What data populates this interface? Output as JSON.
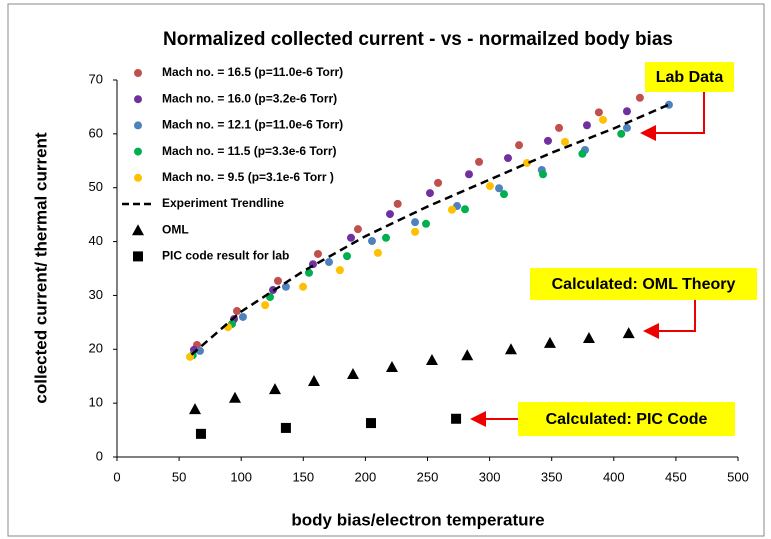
{
  "chart_data": {
    "type": "scatter",
    "title": "Normalized collected current - vs - normailzed body bias",
    "xlabel": "body bias/electron temperature",
    "ylabel": "collected  current/ thermal current",
    "xlim": [
      0,
      500
    ],
    "ylim": [
      0,
      70
    ],
    "xticks": [
      0,
      50,
      100,
      150,
      200,
      250,
      300,
      350,
      400,
      450,
      500
    ],
    "yticks": [
      0,
      10,
      20,
      30,
      40,
      50,
      60,
      70
    ],
    "grid": false,
    "legend": "upper left",
    "series": [
      {
        "name": "Mach no. = 16.5 (p=11.0e-6 Torr)",
        "color": "#c0504d",
        "marker": "circle",
        "x": [
          64.4,
          96.6,
          129.6,
          161.8,
          194,
          226,
          258.5,
          291.5,
          323.7,
          355.9,
          388,
          421
        ],
        "values": [
          20.8,
          27.1,
          32.7,
          37.7,
          42.3,
          47,
          50.9,
          54.8,
          57.9,
          61.1,
          64,
          66.7
        ]
      },
      {
        "name": "Mach no. = 16.0 (p=3.2e-6 Torr)",
        "color": "#7030a0",
        "marker": "circle",
        "x": [
          62,
          94.2,
          125.6,
          157.8,
          188.4,
          219.8,
          252,
          283.4,
          314.8,
          347,
          378.4,
          410.6
        ],
        "values": [
          19.9,
          25.6,
          31,
          35.8,
          40.7,
          45.1,
          49,
          52.5,
          55.5,
          58.7,
          61.6,
          64.2
        ]
      },
      {
        "name": "Mach no. = 12.1 (p=11.0e-6 Torr)",
        "color": "#4f81bd",
        "marker": "circle",
        "x": [
          66.8,
          101.4,
          136,
          170.7,
          205.3,
          240,
          273.8,
          307.6,
          342,
          376.8,
          410.6,
          444.4
        ],
        "values": [
          19.7,
          26,
          31.6,
          36.2,
          40.1,
          43.6,
          46.6,
          49.9,
          53.3,
          57,
          61.1,
          65.4
        ]
      },
      {
        "name": "Mach no. = 11.5 (p=3.3e-6 Torr)",
        "color": "#00b050",
        "marker": "circle",
        "x": [
          61,
          92.6,
          123.2,
          154.6,
          185.2,
          216.6,
          248.8,
          280.2,
          311.6,
          343,
          374.7,
          406
        ],
        "values": [
          18.9,
          24.7,
          29.7,
          34.2,
          37.3,
          40.7,
          43.3,
          46,
          48.8,
          52.5,
          56.3,
          60
        ]
      },
      {
        "name": "Mach no. = 9.5 (p=3.1e-6 Torr )",
        "color": "#ffc000",
        "marker": "circle",
        "x": [
          58.8,
          89.4,
          119.3,
          149.8,
          179.5,
          210.1,
          240,
          269.7,
          300.3,
          330.1,
          360.7,
          391.3
        ],
        "values": [
          18.6,
          24.1,
          28.2,
          31.6,
          34.7,
          37.9,
          41.8,
          45.9,
          50.3,
          54.6,
          58.5,
          62.6
        ]
      },
      {
        "name": "Experiment Trendline",
        "color": "#000000",
        "marker": "dashed-line",
        "x": [
          60,
          100,
          150,
          200,
          250,
          300,
          350,
          400,
          445
        ],
        "values": [
          19,
          27,
          34.5,
          41,
          46.5,
          51.5,
          56.5,
          61,
          65.5
        ]
      },
      {
        "name": "OML",
        "color": "#000000",
        "marker": "triangle",
        "x": [
          62.8,
          95,
          127.2,
          158.6,
          190,
          221.4,
          253.6,
          282,
          317.2,
          348.6,
          380,
          412
        ],
        "values": [
          8.9,
          11,
          12.6,
          14.1,
          15.4,
          16.7,
          18,
          18.9,
          20,
          21.2,
          22.1,
          23
        ]
      },
      {
        "name": "PIC code result for lab",
        "color": "#000000",
        "marker": "square",
        "x": [
          67.6,
          136,
          204.5,
          273
        ],
        "values": [
          4.3,
          5.4,
          6.3,
          7.1
        ]
      }
    ],
    "annotations": [
      "Lab Data",
      "Calculated: OML Theory",
      "Calculated: PIC Code"
    ]
  }
}
